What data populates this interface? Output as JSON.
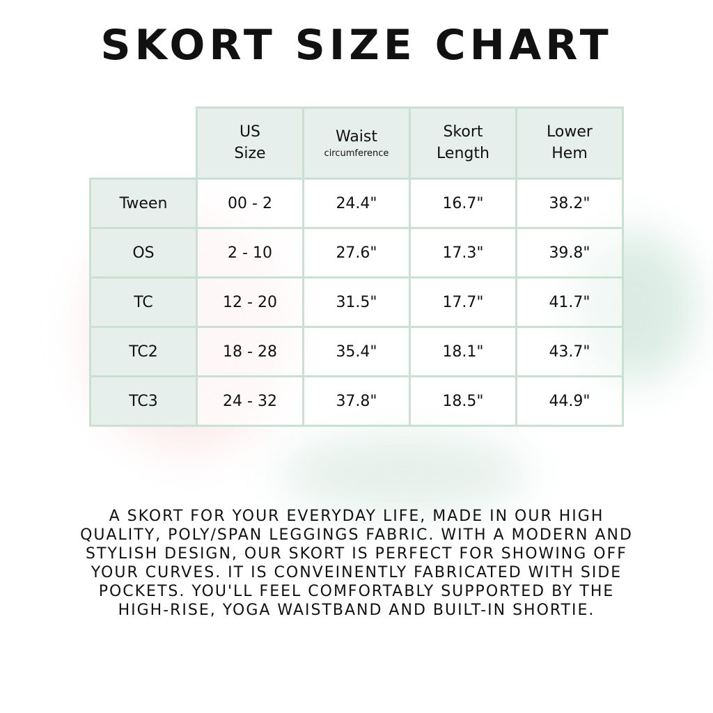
{
  "title": "SKORT SIZE CHART",
  "table": {
    "headers": [
      {
        "line1": "US",
        "line2": "Size",
        "sub": ""
      },
      {
        "line1": "Waist",
        "line2": "",
        "sub": "circumference"
      },
      {
        "line1": "Skort",
        "line2": "Length",
        "sub": ""
      },
      {
        "line1": "Lower",
        "line2": "Hem",
        "sub": ""
      }
    ],
    "rows": [
      {
        "label": "Tween",
        "cells": [
          "00 - 2",
          "24.4\"",
          "16.7\"",
          "38.2\""
        ]
      },
      {
        "label": "OS",
        "cells": [
          "2 - 10",
          "27.6\"",
          "17.3\"",
          "39.8\""
        ]
      },
      {
        "label": "TC",
        "cells": [
          "12 - 20",
          "31.5\"",
          "17.7\"",
          "41.7\""
        ]
      },
      {
        "label": "TC2",
        "cells": [
          "18 - 28",
          "35.4\"",
          "18.1\"",
          "43.7\""
        ]
      },
      {
        "label": "TC3",
        "cells": [
          "24 - 32",
          "37.8\"",
          "18.5\"",
          "44.9\""
        ]
      }
    ]
  },
  "description": "A skort for your everyday life, made in our high quality, poly/span leggings fabric. With a modern and stylish design, our skort is perfect for showing off your curves. It is conveinently fabricated with side pockets. You'll feel comfortably supported by the high-rise, yoga waistband and built-in shortie.",
  "colors": {
    "header_bg": "#e6efeb",
    "border": "#c9e1d5"
  }
}
